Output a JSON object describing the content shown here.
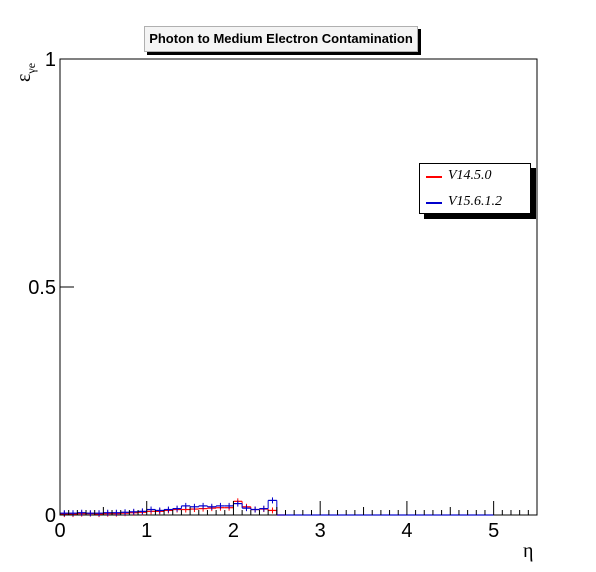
{
  "chart_data": {
    "type": "line",
    "title": "Photon to Medium Electron Contamination",
    "ylabel": "εγe",
    "ylabel_main": "ε",
    "ylabel_sub": "γe",
    "xlabel": "η",
    "xlim": [
      0,
      5.5
    ],
    "ylim": [
      0,
      1
    ],
    "x_ticks": [
      "0",
      "1",
      "2",
      "3",
      "4",
      "5"
    ],
    "y_ticks": [
      "0",
      "0.5",
      "1"
    ],
    "grid": false,
    "legend_position": "right",
    "bin_width": 0.1,
    "series": [
      {
        "name": "V14.5.0",
        "color": "#ff0000",
        "x": [
          0.05,
          0.15,
          0.25,
          0.35,
          0.45,
          0.55,
          0.65,
          0.75,
          0.85,
          0.95,
          1.05,
          1.15,
          1.25,
          1.35,
          1.45,
          1.55,
          1.65,
          1.75,
          1.85,
          1.95,
          2.05,
          2.15,
          2.25,
          2.35,
          2.45,
          2.55
        ],
        "values": [
          0.002,
          0.002,
          0.003,
          0.003,
          0.002,
          0.003,
          0.003,
          0.004,
          0.005,
          0.006,
          0.008,
          0.008,
          0.01,
          0.012,
          0.012,
          0.013,
          0.014,
          0.015,
          0.016,
          0.016,
          0.03,
          0.018,
          0.012,
          0.013,
          0.01,
          0.0
        ]
      },
      {
        "name": "V15.6.1.2",
        "color": "#0000cc",
        "x": [
          0.05,
          0.15,
          0.25,
          0.35,
          0.45,
          0.55,
          0.65,
          0.75,
          0.85,
          0.95,
          1.05,
          1.15,
          1.25,
          1.35,
          1.45,
          1.55,
          1.65,
          1.75,
          1.85,
          1.95,
          2.05,
          2.15,
          2.25,
          2.35,
          2.45,
          2.55,
          2.65,
          2.75,
          2.85,
          2.95,
          3.05,
          3.15,
          3.25,
          3.35,
          3.45,
          3.55,
          3.65,
          3.75,
          3.85,
          3.95,
          4.05,
          4.15,
          4.25,
          4.35,
          4.45,
          4.55,
          4.65,
          4.75,
          4.85,
          4.95
        ],
        "values": [
          0.004,
          0.004,
          0.005,
          0.004,
          0.004,
          0.005,
          0.005,
          0.006,
          0.007,
          0.008,
          0.012,
          0.01,
          0.012,
          0.014,
          0.02,
          0.018,
          0.02,
          0.018,
          0.02,
          0.02,
          0.025,
          0.015,
          0.012,
          0.014,
          0.032,
          0.0,
          0.0,
          0.0,
          0.0,
          0.0,
          0.0,
          0.0,
          0.0,
          0.0,
          0.0,
          0.0,
          0.0,
          0.0,
          0.0,
          0.0,
          0.0,
          0.0,
          0.0,
          0.0,
          0.0,
          0.0,
          0.0,
          0.0,
          0.0,
          0.0
        ]
      }
    ]
  }
}
